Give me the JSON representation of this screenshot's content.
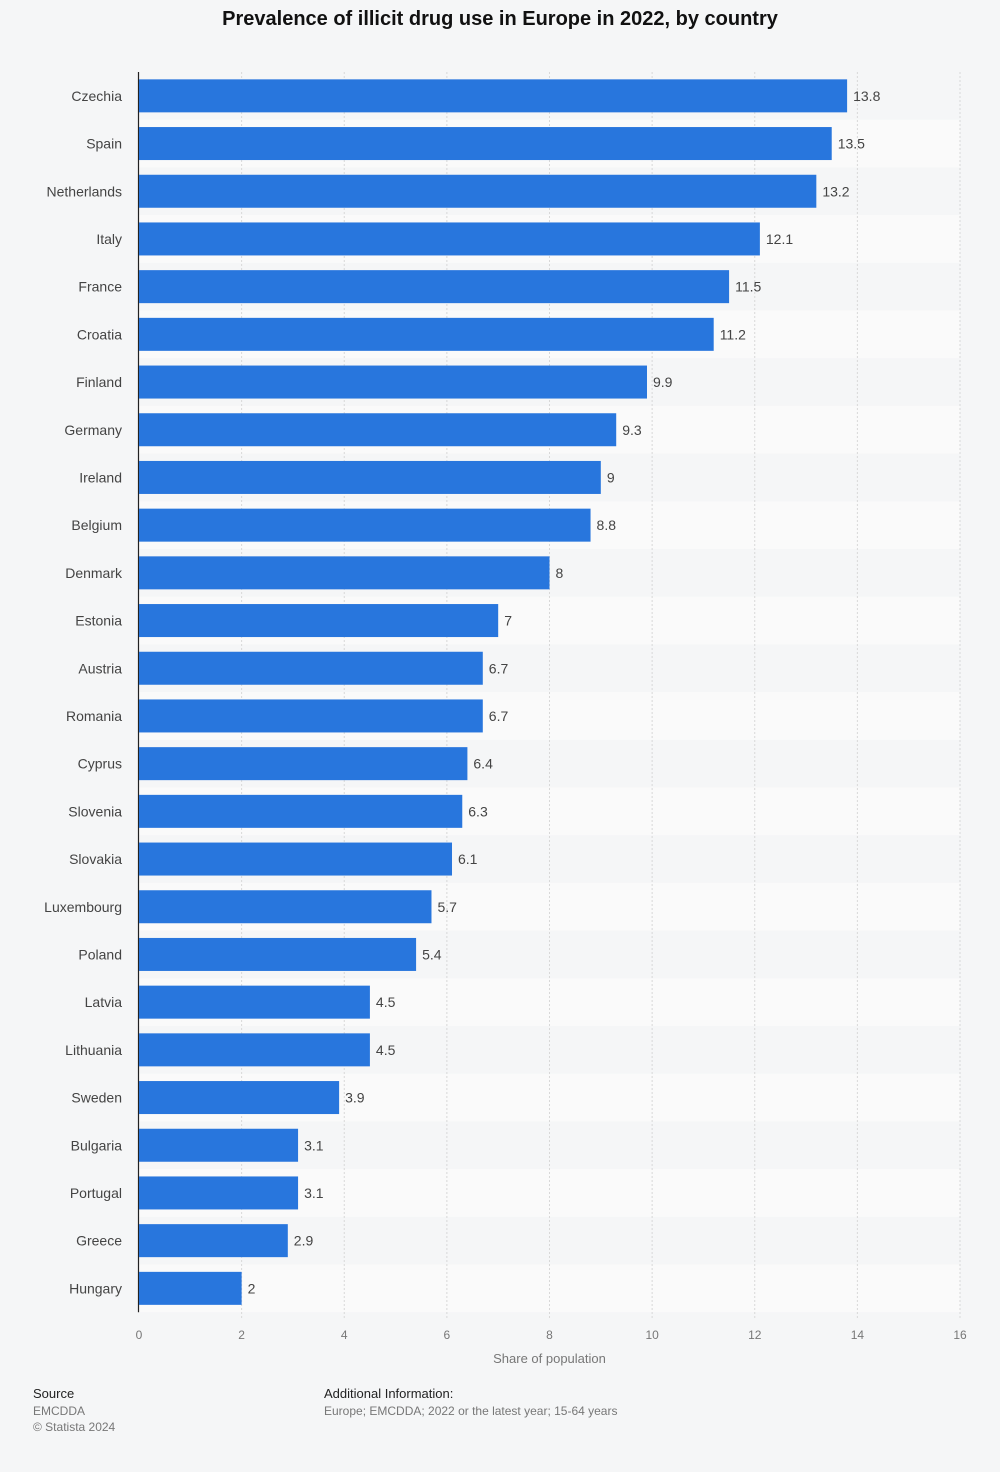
{
  "title": "Prevalence of illicit drug use in Europe in 2022, by country",
  "colors": {
    "bar": "#2876dd",
    "background": "#f5f6f7",
    "band_alt": "#fafafa",
    "grid": "#d8d8d8"
  },
  "chart_data": {
    "type": "bar",
    "orientation": "horizontal",
    "title": "Prevalence of illicit drug use in Europe in 2022, by country",
    "xlabel": "Share of population",
    "ylabel": "",
    "xlim": [
      0,
      16
    ],
    "xticks": [
      0,
      2,
      4,
      6,
      8,
      10,
      12,
      14,
      16
    ],
    "grid": true,
    "categories": [
      "Czechia",
      "Spain",
      "Netherlands",
      "Italy",
      "France",
      "Croatia",
      "Finland",
      "Germany",
      "Ireland",
      "Belgium",
      "Denmark",
      "Estonia",
      "Austria",
      "Romania",
      "Cyprus",
      "Slovenia",
      "Slovakia",
      "Luxembourg",
      "Poland",
      "Latvia",
      "Lithuania",
      "Sweden",
      "Bulgaria",
      "Portugal",
      "Greece",
      "Hungary"
    ],
    "values": [
      13.8,
      13.5,
      13.2,
      12.1,
      11.5,
      11.2,
      9.9,
      9.3,
      9,
      8.8,
      8,
      7,
      6.7,
      6.7,
      6.4,
      6.3,
      6.1,
      5.7,
      5.4,
      4.5,
      4.5,
      3.9,
      3.1,
      3.1,
      2.9,
      2
    ],
    "data_labels": [
      "13.8",
      "13.5",
      "13.2",
      "12.1",
      "11.5",
      "11.2",
      "9.9",
      "9.3",
      "9",
      "8.8",
      "8",
      "7",
      "6.7",
      "6.7",
      "6.4",
      "6.3",
      "6.1",
      "5.7",
      "5.4",
      "4.5",
      "4.5",
      "3.9",
      "3.1",
      "3.1",
      "2.9",
      "2"
    ]
  },
  "footer": {
    "source_heading": "Source",
    "source_name": "EMCDDA",
    "copyright": "© Statista 2024",
    "info_heading": "Additional Information:",
    "info_text": "Europe; EMCDDA; 2022 or the latest year; 15-64 years"
  }
}
